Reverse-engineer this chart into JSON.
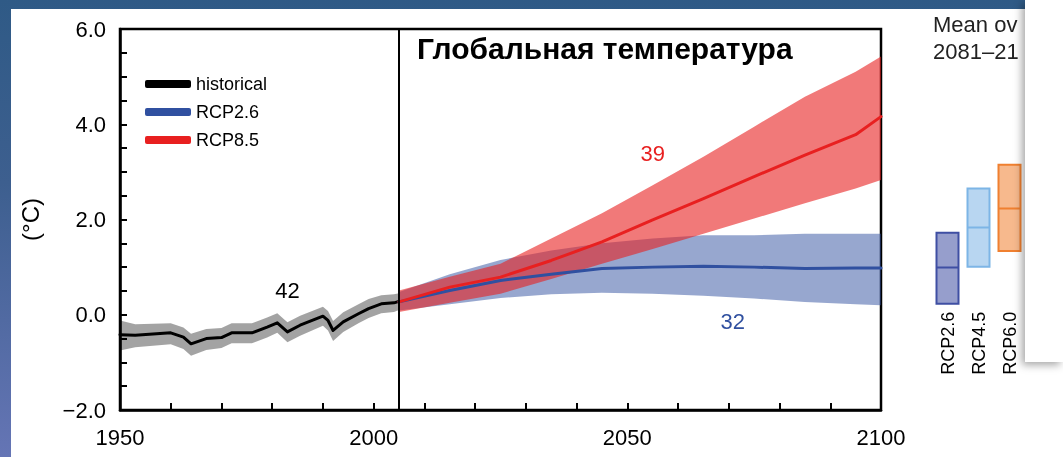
{
  "chart_data": [
    {
      "type": "line",
      "title": "Глобальная температура",
      "ylabel": "(°C)",
      "legend": "top left",
      "marker": "none",
      "xlim": [
        1950,
        2100
      ],
      "xticks": [
        1950,
        {
          "value": 1960,
          "label": null
        },
        {
          "value": 1970,
          "label": null
        },
        {
          "value": 1980,
          "label": null
        },
        {
          "value": 1990,
          "label": null
        },
        2000,
        {
          "value": 2010,
          "label": null
        },
        {
          "value": 2020,
          "label": null
        },
        {
          "value": 2030,
          "label": null
        },
        {
          "value": 2040,
          "label": null
        },
        2050,
        {
          "value": 2060,
          "label": null
        },
        {
          "value": 2070,
          "label": null
        },
        {
          "value": 2080,
          "label": null
        },
        {
          "value": 2090,
          "label": null
        },
        2100
      ],
      "ylim": [
        -2,
        6
      ],
      "yticks": [
        {
          "value": -2,
          "label": "−2.0"
        },
        {
          "value": -1.5,
          "label": null
        },
        {
          "value": -1,
          "label": null
        },
        {
          "value": -0.5,
          "label": null
        },
        {
          "value": 0,
          "label": "0.0"
        },
        {
          "value": 0.5,
          "label": null
        },
        {
          "value": 1,
          "label": null
        },
        {
          "value": 1.5,
          "label": null
        },
        {
          "value": 2,
          "label": "2.0"
        },
        {
          "value": 2.5,
          "label": null
        },
        {
          "value": 3,
          "label": null
        },
        {
          "value": 3.5,
          "label": null
        },
        {
          "value": 4,
          "label": "4.0"
        },
        {
          "value": 4.5,
          "label": null
        },
        {
          "value": 5,
          "label": null
        },
        {
          "value": 5.5,
          "label": null
        },
        {
          "value": 6,
          "label": "6.0"
        }
      ],
      "ref_lines": [
        {
          "axis": "x",
          "value": 2005,
          "label": null,
          "color": "#000000"
        }
      ],
      "annotations": [
        "42",
        "32",
        "39"
      ],
      "series": [
        {
          "name": "historical",
          "color": "#000000",
          "x": [
            1950,
            1953,
            1960,
            1962.5,
            1964,
            1967,
            1970,
            1972,
            1976,
            1979,
            1981,
            1983,
            1985.5,
            1990,
            1991,
            1992,
            1994,
            1997,
            1999,
            2001.5,
            2004,
            2005
          ],
          "values": [
            -0.42,
            -0.43,
            -0.38,
            -0.47,
            -0.61,
            -0.5,
            -0.48,
            -0.38,
            -0.38,
            -0.26,
            -0.17,
            -0.36,
            -0.22,
            -0.03,
            -0.12,
            -0.33,
            -0.15,
            0.02,
            0.13,
            0.23,
            0.25,
            0.28
          ],
          "upper": [
            -0.12,
            -0.2,
            -0.18,
            -0.27,
            -0.4,
            -0.3,
            -0.28,
            -0.18,
            -0.18,
            -0.06,
            0.03,
            -0.16,
            -0.02,
            0.17,
            0.08,
            -0.13,
            0.05,
            0.22,
            0.33,
            0.41,
            0.43,
            0.45
          ],
          "lower": [
            -0.75,
            -0.68,
            -0.62,
            -0.72,
            -0.86,
            -0.74,
            -0.7,
            -0.6,
            -0.6,
            -0.48,
            -0.38,
            -0.58,
            -0.44,
            -0.23,
            -0.33,
            -0.55,
            -0.36,
            -0.18,
            -0.07,
            0.03,
            0.06,
            0.1
          ]
        },
        {
          "name": "RCP2.6",
          "color": "#3050a0",
          "x": [
            2005,
            2015,
            2025,
            2035,
            2045,
            2055,
            2065,
            2075,
            2085,
            2095,
            2100
          ],
          "values": [
            0.27,
            0.51,
            0.72,
            0.85,
            0.97,
            1.0,
            1.02,
            1.0,
            0.97,
            0.98,
            0.98
          ],
          "upper": [
            0.48,
            0.85,
            1.15,
            1.35,
            1.5,
            1.6,
            1.67,
            1.67,
            1.7,
            1.7,
            1.7
          ],
          "lower": [
            0.09,
            0.22,
            0.35,
            0.43,
            0.46,
            0.44,
            0.4,
            0.34,
            0.27,
            0.22,
            0.2
          ]
        },
        {
          "name": "RCP8.5",
          "color": "#e82020",
          "x": [
            2005,
            2015,
            2025,
            2035,
            2045,
            2055,
            2065,
            2075,
            2085,
            2095,
            2100
          ],
          "values": [
            0.27,
            0.58,
            0.79,
            1.14,
            1.53,
            1.99,
            2.44,
            2.9,
            3.35,
            3.78,
            4.16
          ],
          "upper": [
            0.51,
            0.8,
            1.07,
            1.6,
            2.13,
            2.72,
            3.32,
            3.95,
            4.58,
            5.1,
            5.42
          ],
          "lower": [
            0.06,
            0.25,
            0.44,
            0.75,
            1.07,
            1.38,
            1.7,
            2.02,
            2.34,
            2.65,
            2.83
          ]
        }
      ]
    },
    {
      "type": "box",
      "title": "Mean ov\n2081–21",
      "tick_labels": "x",
      "ylim": [
        -2,
        6
      ],
      "categories": [
        "RCP2.6",
        "RCP4.5",
        "RCP6.0"
      ],
      "colors": [
        "#3f4fa3",
        "#7db5e6",
        "#f08030"
      ],
      "boxes": [
        {
          "low": 0.23,
          "q1": 0.23,
          "median": 0.99,
          "q3": 1.72,
          "high": 1.72
        },
        {
          "low": 1.01,
          "q1": 1.01,
          "median": 1.83,
          "q3": 2.65,
          "high": 2.65
        },
        {
          "low": 1.34,
          "q1": 1.34,
          "median": 2.23,
          "q3": 3.15,
          "high": 3.15
        }
      ]
    }
  ]
}
